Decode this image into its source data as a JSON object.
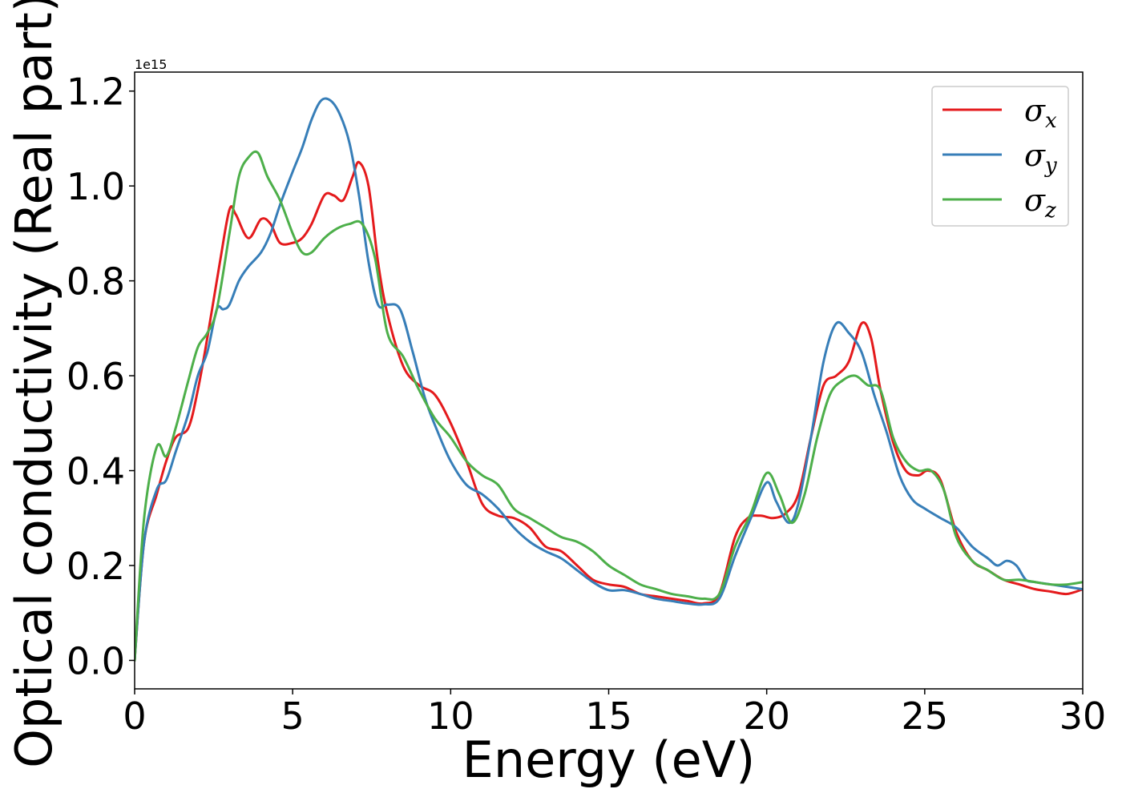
{
  "chart_data": {
    "type": "line",
    "title": "",
    "xlabel": "Energy (eV)",
    "ylabel": "Optical conductivity (Real part)",
    "y_offset_label": "1e15",
    "xlim": [
      0,
      30
    ],
    "ylim": [
      -0.06,
      1.24
    ],
    "xticks": [
      0,
      5,
      10,
      15,
      20,
      25,
      30
    ],
    "xtick_labels": [
      "0",
      "5",
      "10",
      "15",
      "20",
      "25",
      "30"
    ],
    "yticks": [
      0.0,
      0.2,
      0.4,
      0.6,
      0.8,
      1.0,
      1.2
    ],
    "ytick_labels": [
      "0.0",
      "0.2",
      "0.4",
      "0.6",
      "0.8",
      "1.0",
      "1.2"
    ],
    "grid": false,
    "legend_position": "top-right",
    "series": [
      {
        "name": "σx",
        "symbol": "σ",
        "subscript": "x",
        "color": "#e41a1c",
        "x": [
          0,
          0.3,
          0.7,
          1.0,
          1.3,
          1.7,
          2.0,
          2.3,
          2.7,
          3.0,
          3.2,
          3.6,
          4.0,
          4.3,
          4.6,
          5.0,
          5.3,
          5.6,
          6.0,
          6.3,
          6.6,
          6.9,
          7.1,
          7.4,
          7.7,
          8.0,
          8.5,
          9.0,
          9.5,
          10.0,
          10.5,
          11.0,
          11.5,
          12.0,
          12.5,
          13.0,
          13.5,
          14.0,
          14.5,
          15.0,
          15.5,
          16.0,
          16.5,
          17.0,
          17.5,
          18.0,
          18.5,
          19.0,
          19.4,
          19.8,
          20.2,
          20.6,
          21.0,
          21.4,
          21.8,
          22.2,
          22.6,
          23.0,
          23.3,
          23.6,
          24.0,
          24.4,
          24.8,
          25.1,
          25.5,
          26.0,
          26.5,
          27.0,
          27.5,
          28.0,
          28.5,
          29.0,
          29.5,
          30.0
        ],
        "y": [
          0.0,
          0.25,
          0.35,
          0.42,
          0.47,
          0.49,
          0.57,
          0.68,
          0.84,
          0.95,
          0.94,
          0.89,
          0.93,
          0.92,
          0.88,
          0.88,
          0.89,
          0.92,
          0.98,
          0.98,
          0.97,
          1.02,
          1.05,
          1.0,
          0.84,
          0.73,
          0.62,
          0.58,
          0.56,
          0.5,
          0.42,
          0.33,
          0.305,
          0.3,
          0.28,
          0.24,
          0.23,
          0.2,
          0.17,
          0.16,
          0.155,
          0.14,
          0.135,
          0.13,
          0.125,
          0.12,
          0.14,
          0.26,
          0.3,
          0.305,
          0.3,
          0.31,
          0.35,
          0.47,
          0.58,
          0.6,
          0.63,
          0.71,
          0.68,
          0.57,
          0.46,
          0.4,
          0.39,
          0.4,
          0.38,
          0.27,
          0.21,
          0.19,
          0.17,
          0.16,
          0.15,
          0.145,
          0.14,
          0.15
        ]
      },
      {
        "name": "σy",
        "symbol": "σ",
        "subscript": "y",
        "color": "#377eb8",
        "x": [
          0,
          0.3,
          0.7,
          1.0,
          1.3,
          1.7,
          2.0,
          2.3,
          2.6,
          2.8,
          3.0,
          3.3,
          3.6,
          4.0,
          4.3,
          4.6,
          5.0,
          5.3,
          5.6,
          5.9,
          6.2,
          6.5,
          6.8,
          7.1,
          7.4,
          7.7,
          8.0,
          8.4,
          8.8,
          9.2,
          9.6,
          10.0,
          10.5,
          11.0,
          11.5,
          12.0,
          12.5,
          13.0,
          13.5,
          14.0,
          14.5,
          15.0,
          15.5,
          16.0,
          16.5,
          17.0,
          17.5,
          18.0,
          18.5,
          19.0,
          19.5,
          20.0,
          20.3,
          20.7,
          21.0,
          21.4,
          21.8,
          22.2,
          22.6,
          23.0,
          23.4,
          23.8,
          24.2,
          24.6,
          25.0,
          25.5,
          26.0,
          26.5,
          27.0,
          27.3,
          27.6,
          27.9,
          28.2,
          28.5,
          29.0,
          29.5,
          30.0
        ],
        "y": [
          0.0,
          0.25,
          0.36,
          0.38,
          0.44,
          0.52,
          0.6,
          0.65,
          0.74,
          0.74,
          0.75,
          0.8,
          0.83,
          0.86,
          0.9,
          0.96,
          1.03,
          1.08,
          1.14,
          1.18,
          1.18,
          1.15,
          1.09,
          0.98,
          0.84,
          0.75,
          0.75,
          0.74,
          0.65,
          0.55,
          0.48,
          0.42,
          0.37,
          0.35,
          0.32,
          0.28,
          0.25,
          0.23,
          0.215,
          0.19,
          0.165,
          0.148,
          0.148,
          0.14,
          0.13,
          0.125,
          0.12,
          0.118,
          0.13,
          0.22,
          0.3,
          0.375,
          0.335,
          0.29,
          0.33,
          0.47,
          0.63,
          0.71,
          0.69,
          0.65,
          0.56,
          0.48,
          0.39,
          0.34,
          0.32,
          0.3,
          0.28,
          0.24,
          0.215,
          0.2,
          0.21,
          0.2,
          0.17,
          0.165,
          0.16,
          0.155,
          0.15
        ]
      },
      {
        "name": "σz",
        "symbol": "σ",
        "subscript": "z",
        "color": "#4daf4a",
        "x": [
          0,
          0.3,
          0.7,
          1.0,
          1.3,
          1.7,
          2.0,
          2.3,
          2.6,
          3.0,
          3.3,
          3.6,
          3.9,
          4.2,
          4.6,
          5.0,
          5.3,
          5.6,
          6.0,
          6.4,
          6.8,
          7.2,
          7.6,
          8.0,
          8.5,
          9.0,
          9.5,
          10.0,
          10.5,
          11.0,
          11.5,
          12.0,
          12.5,
          13.0,
          13.5,
          14.0,
          14.5,
          15.0,
          15.5,
          16.0,
          16.5,
          17.0,
          17.5,
          18.0,
          18.5,
          19.0,
          19.5,
          20.0,
          20.4,
          20.8,
          21.2,
          21.6,
          22.0,
          22.4,
          22.8,
          23.2,
          23.6,
          24.0,
          24.4,
          24.8,
          25.2,
          25.6,
          26.0,
          26.5,
          27.0,
          27.5,
          28.0,
          28.5,
          29.0,
          29.5,
          30.0
        ],
        "y": [
          0.0,
          0.3,
          0.45,
          0.43,
          0.49,
          0.59,
          0.66,
          0.69,
          0.74,
          0.9,
          1.02,
          1.06,
          1.07,
          1.02,
          0.97,
          0.9,
          0.86,
          0.86,
          0.89,
          0.91,
          0.92,
          0.92,
          0.85,
          0.69,
          0.64,
          0.57,
          0.51,
          0.47,
          0.42,
          0.39,
          0.37,
          0.32,
          0.3,
          0.28,
          0.26,
          0.25,
          0.23,
          0.2,
          0.18,
          0.16,
          0.15,
          0.14,
          0.135,
          0.13,
          0.14,
          0.24,
          0.31,
          0.395,
          0.35,
          0.29,
          0.35,
          0.47,
          0.56,
          0.59,
          0.6,
          0.58,
          0.57,
          0.47,
          0.42,
          0.4,
          0.4,
          0.36,
          0.26,
          0.21,
          0.19,
          0.17,
          0.17,
          0.165,
          0.16,
          0.16,
          0.165
        ]
      }
    ]
  }
}
